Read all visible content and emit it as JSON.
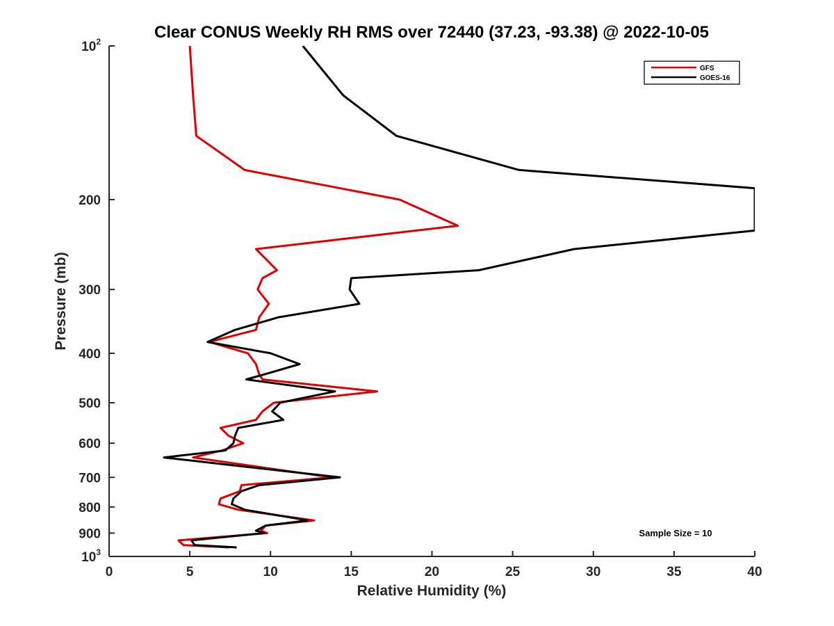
{
  "chart_data": {
    "type": "line",
    "title": "Clear CONUS Weekly RH RMS over 72440 (37.23, -93.38) @ 2022-10-05",
    "xlabel": "Relative Humidity (%)",
    "ylabel": "Pressure (mb)",
    "xlim": [
      0,
      40
    ],
    "ylim": [
      100,
      1000
    ],
    "y_scale": "log",
    "y_reversed": true,
    "x_ticks": [
      0,
      5,
      10,
      15,
      20,
      25,
      30,
      35,
      40
    ],
    "x_tick_labels": [
      "0",
      "5",
      "10",
      "15",
      "20",
      "25",
      "30",
      "35",
      "40"
    ],
    "y_ticks": [
      {
        "value": 100,
        "base": "10",
        "exp": "2"
      },
      {
        "value": 200,
        "label": "200"
      },
      {
        "value": 300,
        "label": "300"
      },
      {
        "value": 400,
        "label": "400"
      },
      {
        "value": 500,
        "label": "500"
      },
      {
        "value": 600,
        "label": "600"
      },
      {
        "value": 700,
        "label": "700"
      },
      {
        "value": 800,
        "label": "800"
      },
      {
        "value": 900,
        "label": "900"
      },
      {
        "value": 1000,
        "base": "10",
        "exp": "3"
      }
    ],
    "grid": false,
    "legend_position": "top-right",
    "annotation": "Sample Size = 10",
    "series": [
      {
        "name": "GFS",
        "color": "#e00000",
        "points": [
          [
            5.0,
            100
          ],
          [
            5.2,
            125
          ],
          [
            5.4,
            150
          ],
          [
            8.4,
            175
          ],
          [
            18.0,
            200
          ],
          [
            21.6,
            225
          ],
          [
            9.1,
            250
          ],
          [
            10.4,
            275
          ],
          [
            9.5,
            285
          ],
          [
            9.2,
            300
          ],
          [
            9.9,
            320
          ],
          [
            9.3,
            340
          ],
          [
            9.1,
            360
          ],
          [
            6.2,
            380
          ],
          [
            8.6,
            400
          ],
          [
            9.1,
            420
          ],
          [
            9.3,
            440
          ],
          [
            9.5,
            450
          ],
          [
            16.6,
            475
          ],
          [
            10.2,
            500
          ],
          [
            9.5,
            520
          ],
          [
            9.1,
            540
          ],
          [
            6.9,
            560
          ],
          [
            7.4,
            580
          ],
          [
            8.3,
            600
          ],
          [
            7.0,
            620
          ],
          [
            5.2,
            640
          ],
          [
            13.8,
            700
          ],
          [
            8.2,
            725
          ],
          [
            8.1,
            745
          ],
          [
            6.9,
            770
          ],
          [
            6.8,
            790
          ],
          [
            8.0,
            810
          ],
          [
            12.7,
            850
          ],
          [
            9.7,
            870
          ],
          [
            9.4,
            890
          ],
          [
            9.8,
            900
          ],
          [
            4.3,
            930
          ],
          [
            4.6,
            950
          ],
          [
            7.4,
            960
          ]
        ]
      },
      {
        "name": "GOES-16",
        "color": "#000000",
        "points": [
          [
            12.0,
            100
          ],
          [
            14.5,
            125
          ],
          [
            17.8,
            150
          ],
          [
            25.4,
            175
          ],
          [
            40.0,
            190
          ],
          [
            40.0,
            230
          ],
          [
            28.8,
            250
          ],
          [
            22.9,
            275
          ],
          [
            15.0,
            285
          ],
          [
            14.9,
            300
          ],
          [
            15.5,
            320
          ],
          [
            10.5,
            340
          ],
          [
            7.8,
            360
          ],
          [
            6.1,
            380
          ],
          [
            10.0,
            400
          ],
          [
            11.8,
            420
          ],
          [
            9.6,
            440
          ],
          [
            8.5,
            450
          ],
          [
            14.0,
            475
          ],
          [
            10.6,
            500
          ],
          [
            10.1,
            520
          ],
          [
            10.8,
            540
          ],
          [
            8.0,
            560
          ],
          [
            7.8,
            580
          ],
          [
            7.7,
            600
          ],
          [
            7.2,
            620
          ],
          [
            3.4,
            640
          ],
          [
            14.3,
            700
          ],
          [
            9.3,
            725
          ],
          [
            8.2,
            745
          ],
          [
            7.7,
            770
          ],
          [
            7.6,
            790
          ],
          [
            8.4,
            810
          ],
          [
            12.3,
            850
          ],
          [
            9.7,
            870
          ],
          [
            9.1,
            890
          ],
          [
            9.6,
            900
          ],
          [
            5.1,
            930
          ],
          [
            5.3,
            950
          ],
          [
            7.9,
            960
          ]
        ]
      }
    ]
  }
}
